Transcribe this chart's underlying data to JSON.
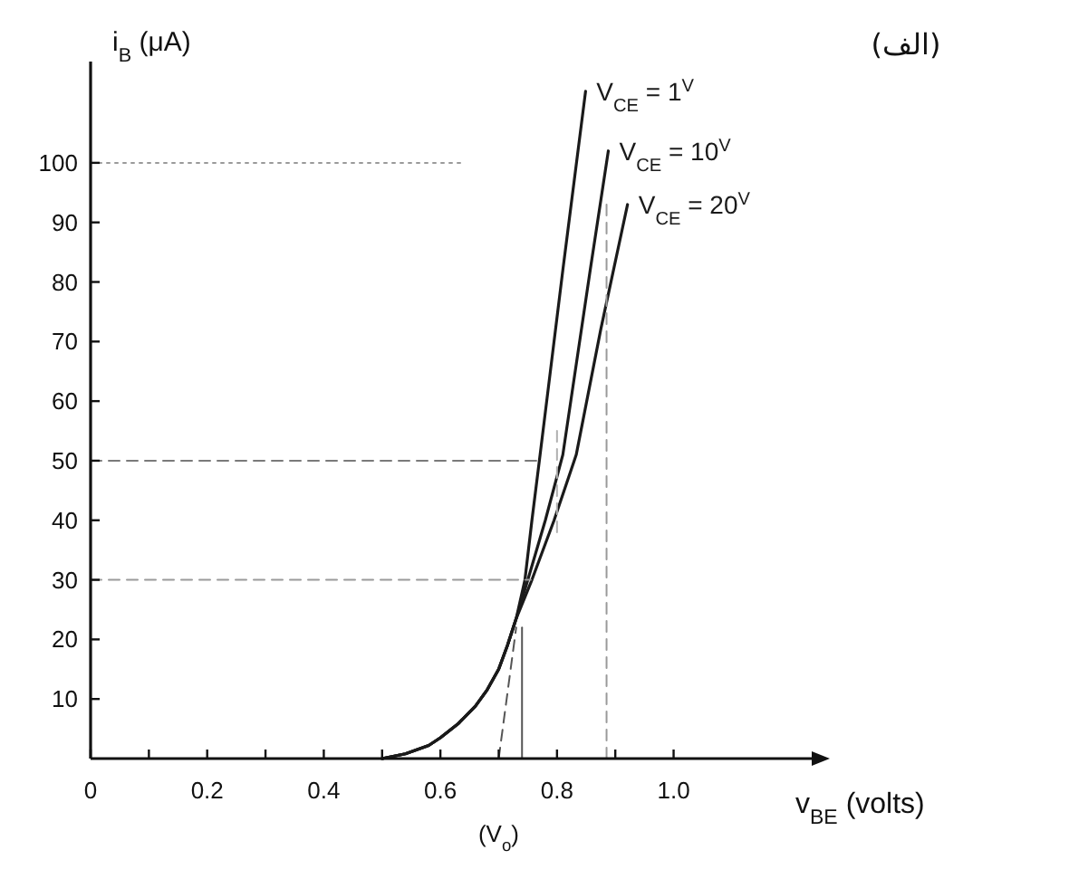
{
  "chart_data": {
    "type": "line",
    "title": "(الف)",
    "xlabel": "v$_{BE}$ (volts)",
    "ylabel": "i$_{B}$ (μA)",
    "xlim": [
      0,
      1.24
    ],
    "ylim": [
      0,
      117
    ],
    "xticks": [
      0,
      {
        "value": 0.1,
        "label": null
      },
      0.2,
      {
        "value": 0.3,
        "label": null
      },
      0.4,
      {
        "value": 0.5,
        "label": null
      },
      0.6,
      {
        "value": 0.7,
        "label": null
      },
      0.8,
      {
        "value": 0.9,
        "label": null
      },
      {
        "value": 1,
        "label": "1.0"
      }
    ],
    "yticks": [
      10,
      20,
      30,
      40,
      50,
      60,
      70,
      80,
      90,
      100
    ],
    "series": [
      {
        "name": "V$_{CE}$ = 1$^{V}$",
        "color": "#1a1a1a",
        "line_style": "solid",
        "x": [
          0.5,
          0.54,
          0.58,
          0.6,
          0.63,
          0.66,
          0.68,
          0.7,
          0.715,
          0.73,
          0.745,
          0.757,
          0.771,
          0.81,
          0.849
        ],
        "values": [
          0,
          0.8,
          2.2,
          3.5,
          5.8,
          8.8,
          11.5,
          15,
          19,
          23.5,
          30,
          40,
          51,
          82,
          112
        ]
      },
      {
        "name": "V$_{CE}$ = 10$^{V}$",
        "color": "#1a1a1a",
        "line_style": "solid",
        "x": [
          0.5,
          0.54,
          0.58,
          0.6,
          0.63,
          0.66,
          0.68,
          0.7,
          0.715,
          0.73,
          0.75,
          0.78,
          0.81,
          0.857,
          0.888
        ],
        "values": [
          0,
          0.8,
          2.2,
          3.5,
          5.8,
          8.8,
          11.5,
          15,
          19,
          23.5,
          30,
          40,
          51,
          82,
          102
        ]
      },
      {
        "name": "V$_{CE}$ = 20$^{V}$",
        "color": "#1a1a1a",
        "line_style": "solid",
        "x": [
          0.5,
          0.54,
          0.58,
          0.6,
          0.63,
          0.66,
          0.68,
          0.7,
          0.715,
          0.73,
          0.757,
          0.795,
          0.833,
          0.875,
          0.921
        ],
        "values": [
          0,
          0.8,
          2.2,
          3.5,
          5.8,
          8.8,
          11.5,
          15,
          19,
          23.5,
          30,
          40,
          51,
          72,
          93
        ]
      },
      {
        "color": "#9a9a9a",
        "line_style": "dotted",
        "x": [
          0,
          0.64
        ],
        "values": [
          100,
          100
        ]
      },
      {
        "color": "#7a7a7a",
        "line_style": "dashed",
        "x": [
          0,
          0.771
        ],
        "values": [
          50,
          50
        ]
      },
      {
        "color": "#9a9a9a",
        "line_style": "dashed",
        "x": [
          0,
          0.755
        ],
        "values": [
          30,
          30
        ]
      },
      {
        "color": "#9a9a9a",
        "line_style": "dashed",
        "x": [
          0.885,
          0.885
        ],
        "values": [
          0,
          94
        ]
      },
      {
        "color": "#b0b0b0",
        "line_style": "dashed",
        "x": [
          0.8,
          0.8
        ],
        "values": [
          38,
          56
        ]
      },
      {
        "color": "#555555",
        "line_style": "dashed",
        "x": [
          0.7,
          0.73
        ],
        "values": [
          0,
          22
        ]
      },
      {
        "color": "#555555",
        "line_style": "solid",
        "x": [
          0.74,
          0.74
        ],
        "values": [
          0,
          22
        ]
      }
    ],
    "annotations": [
      {
        "text": "(V$_{o}$)",
        "x": 0.7,
        "y": 0
      }
    ]
  }
}
